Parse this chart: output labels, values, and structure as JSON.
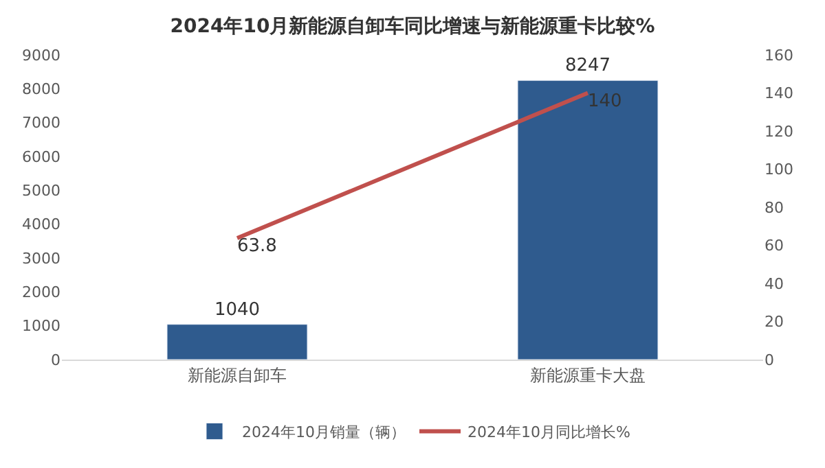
{
  "chart_data": {
    "type": "bar",
    "title": "2024年10月新能源自卸车同比增速与新能源重卡比较%",
    "categories": [
      "新能源自卸车",
      "新能源重卡大盘"
    ],
    "series": [
      {
        "name": "2024年10月销量（辆）",
        "color": "#2f5b8e",
        "values": [
          1040,
          8247
        ]
      },
      {
        "name": "2024年10月同比增长%",
        "color": "#c0504d",
        "values": [
          63.8,
          140
        ],
        "type": "line",
        "axis": "y2"
      }
    ],
    "ylim": [
      0,
      9000
    ],
    "yticks": [
      0,
      1000,
      2000,
      3000,
      4000,
      5000,
      6000,
      7000,
      8000,
      9000
    ],
    "y2lim": [
      0,
      160
    ],
    "y2ticks": [
      0,
      20,
      40,
      60,
      80,
      100,
      120,
      140,
      160
    ],
    "data_labels": true,
    "legend": "bottom",
    "marker": "none",
    "line_style": "solid"
  }
}
